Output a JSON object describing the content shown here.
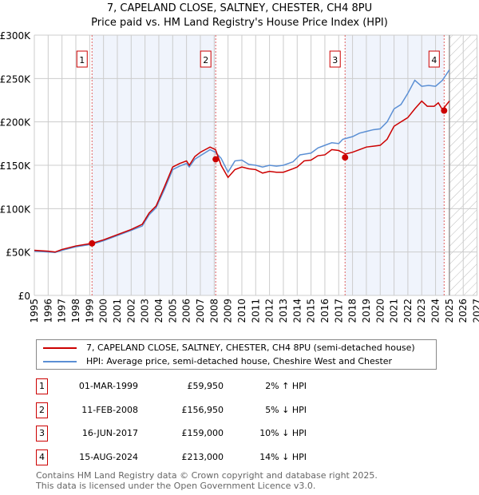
{
  "chart_data": {
    "type": "line",
    "title": "7, CAPELAND CLOSE, SALTNEY, CHESTER, CH4 8PU",
    "subtitle": "Price paid vs. HM Land Registry's House Price Index (HPI)",
    "xlim": [
      1995,
      2027
    ],
    "ylim": [
      0,
      300000
    ],
    "x_ticks": [
      "1995",
      "1996",
      "1997",
      "1998",
      "1999",
      "2000",
      "2001",
      "2002",
      "2003",
      "2004",
      "2005",
      "2006",
      "2007",
      "2008",
      "2009",
      "2010",
      "2011",
      "2012",
      "2013",
      "2014",
      "2015",
      "2016",
      "2017",
      "2018",
      "2019",
      "2020",
      "2021",
      "2022",
      "2023",
      "2024",
      "2025",
      "2026",
      "2027"
    ],
    "y_ticks": [
      {
        "v": 0,
        "label": "£0"
      },
      {
        "v": 50000,
        "label": "£50K"
      },
      {
        "v": 100000,
        "label": "£100K"
      },
      {
        "v": 150000,
        "label": "£150K"
      },
      {
        "v": 200000,
        "label": "£200K"
      },
      {
        "v": 250000,
        "label": "£250K"
      },
      {
        "v": 300000,
        "label": "£300K"
      }
    ],
    "grid": true,
    "forecast_from": 2025,
    "series": [
      {
        "name": "7, CAPELAND CLOSE, SALTNEY, CHESTER, CH4 8PU (semi-detached house)",
        "color": "#cc0000",
        "x": [
          1995,
          1996,
          1996.5,
          1997,
          1998,
          1999.17,
          2000,
          2001,
          2002,
          2002.8,
          2003.3,
          2003.8,
          2004.4,
          2005,
          2005.5,
          2006,
          2006.2,
          2006.6,
          2007,
          2007.7,
          2008.1,
          2008.5,
          2009,
          2009.5,
          2010,
          2010.5,
          2011,
          2011.5,
          2012,
          2012.5,
          2013,
          2013.7,
          2014,
          2014.5,
          2015,
          2015.5,
          2016,
          2016.5,
          2017,
          2017.5,
          2018,
          2018.5,
          2019,
          2019.5,
          2020,
          2020.5,
          2021,
          2021.5,
          2022,
          2022.5,
          2023,
          2023.4,
          2023.9,
          2024.2,
          2024.5,
          2025
        ],
        "y": [
          52000,
          51000,
          50000,
          53000,
          57000,
          60000,
          64000,
          70000,
          76000,
          82000,
          95000,
          103000,
          125000,
          148000,
          152000,
          155000,
          150000,
          160000,
          165000,
          171000,
          168000,
          150000,
          136000,
          145000,
          148000,
          146000,
          145000,
          141000,
          143000,
          142000,
          142000,
          146000,
          148000,
          155000,
          156000,
          161000,
          162000,
          168000,
          167000,
          163000,
          165000,
          168000,
          171000,
          172000,
          173000,
          180000,
          195000,
          200000,
          205000,
          215000,
          224000,
          218000,
          218000,
          222000,
          214000,
          224000
        ]
      },
      {
        "name": "HPI: Average price, semi-detached house, Cheshire West and Chester",
        "color": "#5b8fd4",
        "x": [
          1995,
          1996,
          1996.5,
          1997,
          1998,
          1999.17,
          2000,
          2001,
          2002,
          2002.8,
          2003.3,
          2003.8,
          2004.4,
          2005,
          2005.5,
          2006,
          2006.2,
          2006.6,
          2007,
          2007.7,
          2008.1,
          2008.5,
          2009,
          2009.5,
          2010,
          2010.5,
          2011,
          2011.5,
          2012,
          2012.5,
          2013,
          2013.7,
          2014.2,
          2015,
          2015.5,
          2016,
          2016.5,
          2017,
          2017.3,
          2018,
          2018.5,
          2019,
          2019.5,
          2020,
          2020.5,
          2021,
          2021.5,
          2022,
          2022.5,
          2023,
          2023.5,
          2024,
          2024.5,
          2025
        ],
        "y": [
          51000,
          50000,
          49500,
          52000,
          56000,
          59000,
          63000,
          69000,
          75000,
          80000,
          93000,
          101000,
          122000,
          145000,
          149000,
          152000,
          148000,
          157000,
          161000,
          168000,
          165000,
          158000,
          142000,
          155000,
          156000,
          151000,
          150000,
          148000,
          150000,
          149000,
          150000,
          154000,
          162000,
          164000,
          170000,
          173000,
          176000,
          175000,
          180000,
          183000,
          187000,
          189000,
          191000,
          192000,
          200000,
          215000,
          220000,
          233000,
          248000,
          241000,
          242000,
          241000,
          248000,
          260000
        ]
      }
    ],
    "sales": [
      {
        "n": "1",
        "x": 1999.17,
        "y": 59950,
        "date": "01-MAR-1999",
        "price": "£59,950",
        "hpi": "2% ↑ HPI"
      },
      {
        "n": "2",
        "x": 2008.11,
        "y": 156950,
        "date": "11-FEB-2008",
        "price": "£156,950",
        "hpi": "5% ↓ HPI"
      },
      {
        "n": "3",
        "x": 2017.46,
        "y": 159000,
        "date": "16-JUN-2017",
        "price": "£159,000",
        "hpi": "10% ↓ HPI"
      },
      {
        "n": "4",
        "x": 2024.62,
        "y": 213000,
        "date": "15-AUG-2024",
        "price": "£213,000",
        "hpi": "14% ↓ HPI"
      }
    ],
    "legend_placement": "below"
  },
  "footer": {
    "line1": "Contains HM Land Registry data © Crown copyright and database right 2025.",
    "line2": "This data is licensed under the Open Government Licence v3.0."
  }
}
